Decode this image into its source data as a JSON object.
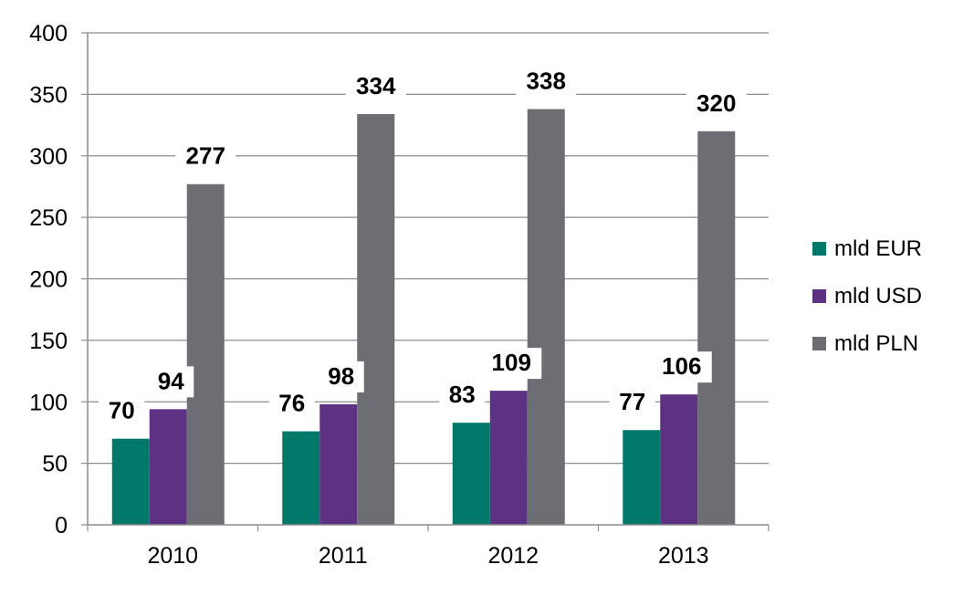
{
  "chart_data": {
    "type": "bar",
    "categories": [
      "2010",
      "2011",
      "2012",
      "2013"
    ],
    "series": [
      {
        "name": "mld EUR",
        "values": [
          70,
          76,
          83,
          77
        ],
        "color": "#00796B"
      },
      {
        "name": "mld USD",
        "values": [
          94,
          98,
          109,
          106
        ],
        "color": "#5E3282"
      },
      {
        "name": "mld PLN",
        "values": [
          277,
          334,
          338,
          320
        ],
        "color": "#6D6E73"
      }
    ],
    "ylim": [
      0,
      400
    ],
    "yticks": [
      0,
      50,
      100,
      150,
      200,
      250,
      300,
      350,
      400
    ],
    "grid": true,
    "legend_position": "right",
    "title": "",
    "xlabel": "",
    "ylabel": ""
  }
}
